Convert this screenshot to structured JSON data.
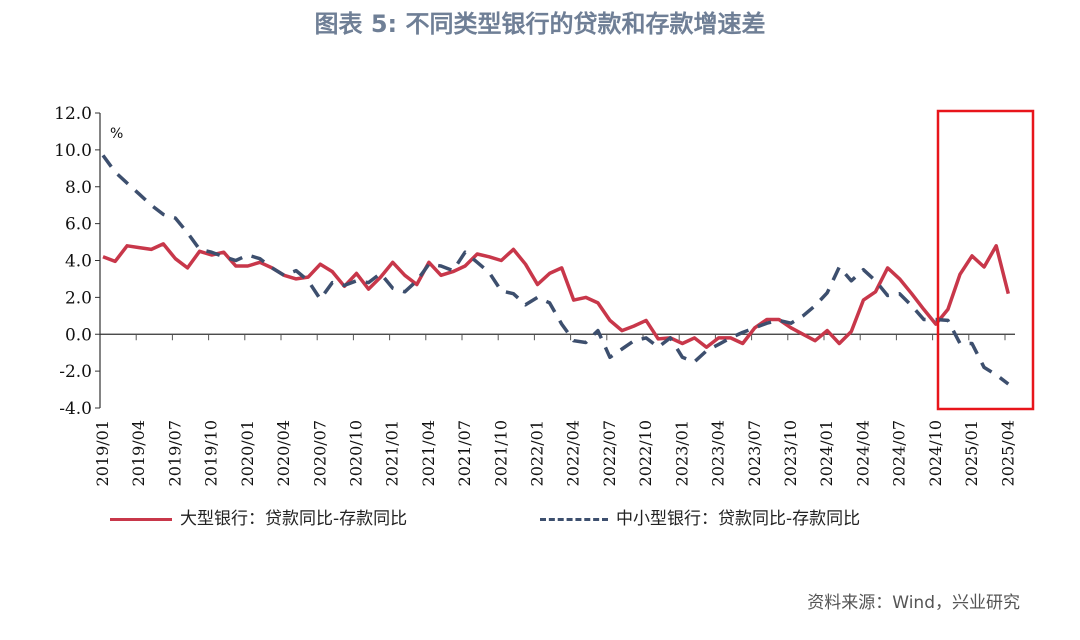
{
  "title": "图表 5: 不同类型银行的贷款和存款增速差",
  "source": "资料来源：Wind，兴业研究",
  "chart_data": {
    "type": "line",
    "title": "图表 5: 不同类型银行的贷款和存款增速差",
    "ylabel": "%",
    "ylim": [
      -4,
      12
    ],
    "yticks": [
      "12.0",
      "10.0",
      "8.0",
      "6.0",
      "4.0",
      "2.0",
      "0.0",
      "-2.0",
      "-4.0"
    ],
    "ytick_values": [
      12,
      10,
      8,
      6,
      4,
      2,
      0,
      -2,
      -4
    ],
    "start": "2019/01",
    "xtick_labels": [
      "2019/01",
      "2019/04",
      "2019/07",
      "2019/10",
      "2020/01",
      "2020/04",
      "2020/07",
      "2020/10",
      "2021/01",
      "2021/04",
      "2021/07",
      "2021/10",
      "2022/01",
      "2022/04",
      "2022/07",
      "2022/10",
      "2023/01",
      "2023/04",
      "2023/07",
      "2023/10",
      "2024/01",
      "2024/04",
      "2024/07",
      "2024/10",
      "2025/01",
      "2025/04"
    ],
    "legend_placement": "bottom",
    "highlight": {
      "from": "2024/11",
      "to": "2025/04",
      "color": "#e8151b"
    },
    "series": [
      {
        "name": "大型银行：贷款同比-存款同比",
        "color": "#c8374a",
        "style": "solid",
        "values": [
          4.2,
          3.95,
          4.8,
          4.7,
          4.6,
          4.9,
          4.1,
          3.6,
          4.5,
          4.3,
          4.45,
          3.7,
          3.7,
          3.9,
          3.6,
          3.2,
          3.0,
          3.1,
          3.8,
          3.4,
          2.6,
          3.3,
          2.45,
          3.1,
          3.9,
          3.2,
          2.7,
          3.9,
          3.2,
          3.4,
          3.7,
          4.35,
          4.2,
          4.0,
          4.6,
          3.8,
          2.7,
          3.3,
          3.6,
          1.85,
          2.0,
          1.7,
          0.75,
          0.2,
          0.45,
          0.75,
          -0.25,
          -0.2,
          -0.5,
          -0.2,
          -0.7,
          -0.2,
          -0.2,
          -0.5,
          0.35,
          0.8,
          0.8,
          0.35,
          0.0,
          -0.35,
          0.2,
          -0.5,
          0.15,
          1.85,
          2.3,
          3.6,
          3.0,
          2.2,
          1.35,
          0.55,
          1.35,
          3.25,
          4.25,
          3.65,
          4.8,
          2.2
        ]
      },
      {
        "name": "中小型银行：贷款同比-存款同比",
        "color": "#3d4f6e",
        "style": "dashed",
        "values": [
          9.7,
          8.8,
          8.2,
          7.6,
          7.0,
          6.5,
          6.3,
          5.5,
          4.6,
          4.45,
          4.2,
          4.0,
          4.3,
          4.1,
          3.6,
          3.2,
          3.45,
          2.9,
          1.9,
          2.8,
          2.65,
          2.9,
          2.8,
          3.3,
          2.5,
          2.3,
          2.9,
          3.8,
          3.7,
          3.45,
          4.45,
          3.9,
          3.35,
          2.35,
          2.2,
          1.6,
          2.0,
          1.7,
          0.55,
          -0.35,
          -0.45,
          0.2,
          -1.25,
          -0.8,
          -0.35,
          -0.2,
          -0.7,
          -0.2,
          -1.25,
          -1.5,
          -0.9,
          -0.55,
          -0.2,
          0.1,
          0.35,
          0.6,
          0.75,
          0.6,
          1.0,
          1.55,
          2.25,
          3.65,
          2.9,
          3.5,
          2.9,
          2.1,
          2.2,
          1.55,
          0.8,
          0.8,
          0.75,
          -0.5,
          -0.5,
          -1.8,
          -2.2,
          -2.7
        ]
      }
    ]
  }
}
